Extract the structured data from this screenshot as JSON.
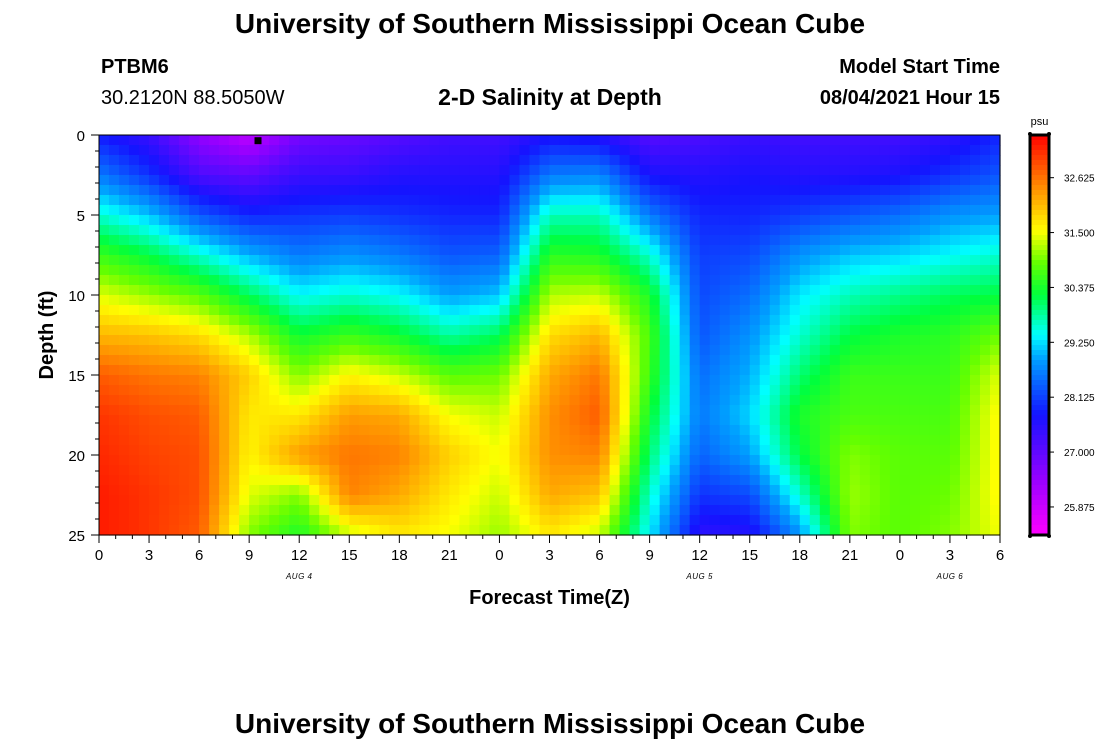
{
  "header": {
    "title": "University of Southern Mississippi Ocean Cube",
    "station_id": "PTBM6",
    "station_location": "30.2120N  88.5050W",
    "plot_title": "2-D Salinity at Depth",
    "model_label": "Model Start Time",
    "model_start": "08/04/2021 Hour 15"
  },
  "footer": {
    "title": "University of Southern Mississippi Ocean Cube"
  },
  "chart_data": {
    "type": "heatmap",
    "title": "2-D Salinity at Depth",
    "xlabel": "Forecast Time(Z)",
    "ylabel": "Depth (ft)",
    "x_ticks": [
      "0",
      "3",
      "6",
      "9",
      "12",
      "15",
      "18",
      "21",
      "0",
      "3",
      "6",
      "9",
      "12",
      "15",
      "18",
      "21",
      "0",
      "3",
      "6"
    ],
    "date_labels": [
      {
        "tick_index": 4,
        "label": "AUG 4"
      },
      {
        "tick_index": 12,
        "label": "AUG 5"
      },
      {
        "tick_index": 17,
        "label": "AUG 6"
      }
    ],
    "x_range_hours": [
      0,
      54
    ],
    "ylim": [
      0,
      25
    ],
    "y_ticks": [
      0,
      5,
      10,
      15,
      20,
      25
    ],
    "colorbar": {
      "unit": "psu",
      "ticks": [
        "32.625",
        "31.500",
        "30.375",
        "29.250",
        "28.125",
        "27.000",
        "25.875"
      ],
      "min": 25.3,
      "max": 33.5
    },
    "marker": {
      "hour": 9.5,
      "depth_ft": 0.2
    },
    "profiles": {
      "hours": [
        0,
        3,
        6,
        9,
        12,
        15,
        18,
        21,
        24,
        27,
        30,
        33,
        36,
        39,
        42,
        45,
        48,
        51,
        54
      ],
      "depths_ft": [
        0,
        2.5,
        5,
        7.5,
        10,
        12.5,
        15,
        17.5,
        20,
        22.5,
        25
      ],
      "salinity_psu": [
        [
          27.8,
          28.6,
          29.6,
          30.6,
          31.4,
          32.1,
          32.8,
          33.1,
          33.2,
          33.3,
          33.3
        ],
        [
          27.4,
          28.0,
          29.1,
          30.2,
          31.1,
          32.0,
          32.6,
          32.9,
          33.0,
          33.1,
          33.1
        ],
        [
          26.5,
          27.2,
          28.3,
          29.6,
          30.8,
          31.8,
          32.5,
          32.8,
          32.9,
          32.9,
          32.8
        ],
        [
          26.0,
          27.0,
          27.9,
          29.0,
          30.1,
          31.2,
          31.9,
          31.7,
          31.6,
          31.4,
          31.0
        ],
        [
          26.8,
          27.4,
          28.0,
          28.6,
          29.4,
          30.3,
          31.0,
          31.7,
          32.3,
          31.0,
          30.4
        ],
        [
          26.9,
          27.4,
          28.1,
          28.8,
          29.6,
          30.6,
          31.6,
          32.3,
          32.6,
          32.5,
          31.3
        ],
        [
          27.1,
          27.6,
          28.0,
          28.6,
          29.4,
          30.3,
          31.3,
          32.2,
          32.5,
          32.2,
          31.7
        ],
        [
          27.3,
          27.6,
          27.9,
          28.3,
          28.9,
          29.8,
          30.8,
          31.5,
          31.9,
          31.7,
          31.5
        ],
        [
          27.3,
          27.6,
          27.9,
          28.4,
          29.1,
          30.1,
          30.9,
          31.3,
          31.5,
          31.3,
          31.1
        ],
        [
          27.7,
          28.6,
          29.7,
          30.5,
          31.2,
          31.8,
          32.2,
          32.4,
          32.4,
          32.2,
          31.7
        ],
        [
          27.6,
          28.7,
          29.7,
          30.4,
          31.3,
          32.1,
          32.6,
          32.8,
          32.5,
          32.0,
          31.3
        ],
        [
          27.1,
          27.7,
          28.6,
          29.6,
          30.4,
          30.7,
          30.6,
          30.3,
          30.0,
          29.6,
          29.3
        ],
        [
          27.2,
          27.6,
          27.9,
          28.1,
          28.2,
          28.3,
          28.5,
          28.6,
          28.4,
          28.0,
          27.5
        ],
        [
          27.4,
          27.7,
          27.9,
          28.2,
          28.5,
          28.8,
          29.0,
          29.2,
          28.9,
          28.2,
          27.6
        ],
        [
          27.3,
          27.6,
          28.1,
          28.8,
          29.3,
          29.6,
          30.0,
          30.4,
          30.2,
          29.6,
          28.8
        ],
        [
          27.3,
          27.6,
          28.3,
          29.1,
          29.7,
          30.2,
          30.6,
          30.7,
          31.0,
          31.1,
          31.0
        ],
        [
          27.3,
          27.7,
          28.5,
          29.2,
          29.9,
          30.4,
          30.6,
          30.7,
          30.8,
          30.8,
          30.8
        ],
        [
          27.5,
          28.0,
          28.8,
          29.4,
          30.1,
          30.5,
          30.6,
          30.7,
          30.8,
          30.9,
          31.0
        ],
        [
          27.9,
          28.3,
          28.9,
          29.6,
          30.2,
          30.9,
          31.4,
          31.6,
          31.6,
          31.6,
          31.5
        ]
      ]
    }
  }
}
